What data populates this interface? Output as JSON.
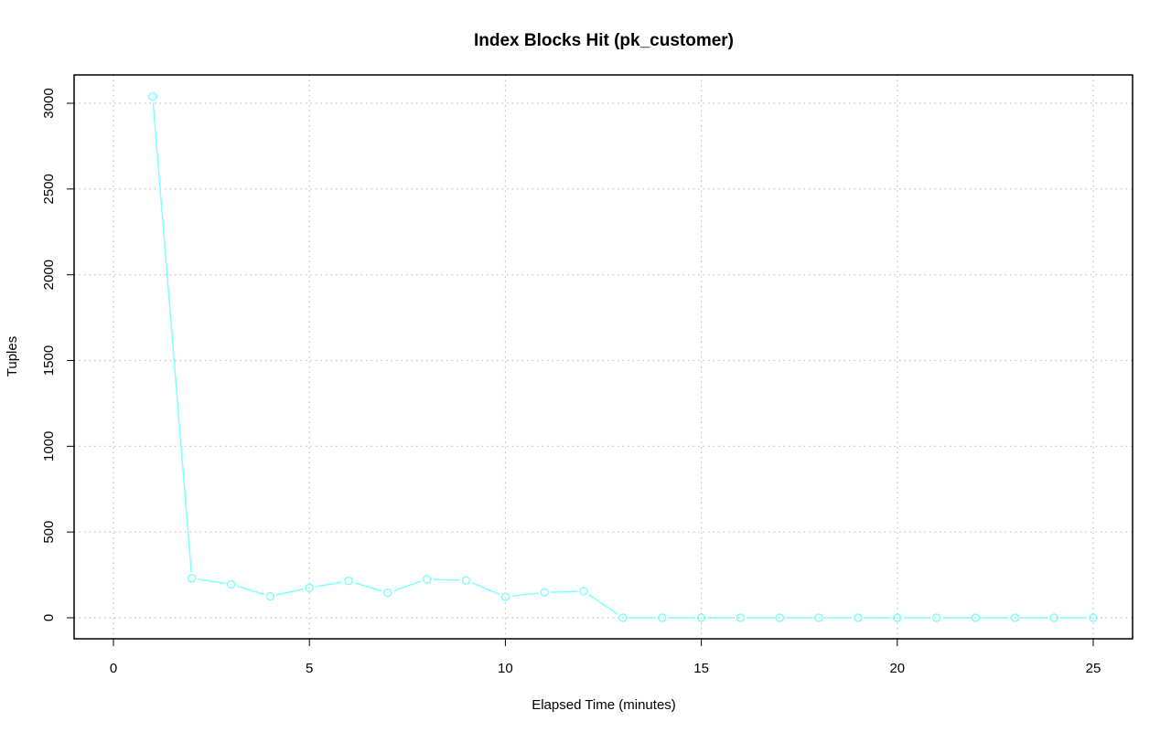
{
  "chart_data": {
    "type": "line",
    "title": "Index Blocks Hit (pk_customer)",
    "xlabel": "Elapsed Time (minutes)",
    "ylabel": "Tuples",
    "xlim": [
      0,
      25
    ],
    "ylim": [
      0,
      3000
    ],
    "xticks": [
      "0",
      "5",
      "10",
      "15",
      "20",
      "25"
    ],
    "yticks": [
      "0",
      "500",
      "1000",
      "1500",
      "2000",
      "2500",
      "3000"
    ],
    "grid": true,
    "series": [
      {
        "color": "#80ffff",
        "marker": "open-circle",
        "x": [
          1,
          2,
          3,
          4,
          5,
          6,
          7,
          8,
          9,
          10,
          11,
          12,
          13,
          14,
          15,
          16,
          17,
          18,
          19,
          20,
          21,
          22,
          23,
          24,
          25
        ],
        "y": [
          3040,
          230,
          195,
          125,
          175,
          215,
          145,
          225,
          218,
          122,
          148,
          155,
          0,
          0,
          0,
          0,
          0,
          0,
          0,
          0,
          0,
          0,
          0,
          0,
          0
        ]
      }
    ]
  }
}
